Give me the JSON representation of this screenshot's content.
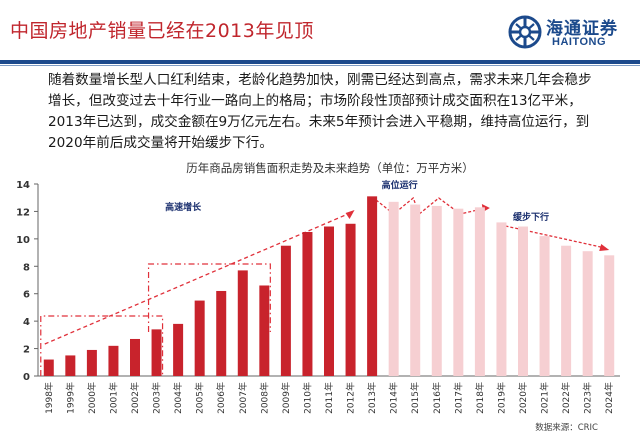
{
  "header": {
    "title": "中国房地产销量已经在2013年见顶",
    "logo_cn": "海通证券",
    "logo_en": "HAITONG",
    "logo_color": "#1c4a8c",
    "logo_icon": "haitong-logo-icon"
  },
  "description": "随着数量增长型人口红利结束，老龄化趋势加快，刚需已经达到高点，需求未来几年会稳步增长，但改变过去十年行业一路向上的格局；市场阶段性顶部预计成交面积在13亿平米，2013年已达到，成交金额在9万亿元左右。未来5年预计会进入平稳期，维持高位运行，到2020年前后成交量将开始缓步下行。",
  "chart_data": {
    "type": "bar",
    "title": "历年商品房销售面积走势及未来趋势（单位：万平方米）",
    "categories": [
      "1998年",
      "1999年",
      "2000年",
      "2001年",
      "2002年",
      "2003年",
      "2004年",
      "2005年",
      "2006年",
      "2007年",
      "2008年",
      "2009年",
      "2010年",
      "2011年",
      "2012年",
      "2013年",
      "2014年",
      "2015年",
      "2016年",
      "2017年",
      "2018年",
      "2019年",
      "2020年",
      "2021年",
      "2022年",
      "2023年",
      "2024年"
    ],
    "values": [
      1.2,
      1.5,
      1.9,
      2.2,
      2.7,
      3.4,
      3.8,
      5.5,
      6.2,
      7.7,
      6.6,
      9.5,
      10.5,
      10.9,
      11.1,
      13.1,
      12.7,
      12.5,
      12.4,
      12.2,
      12.3,
      11.2,
      10.9,
      10.2,
      9.5,
      9.1,
      8.8
    ],
    "actual_count": 16,
    "ylim": [
      0,
      14
    ],
    "yticks": [
      0,
      2,
      4,
      6,
      8,
      10,
      12,
      14
    ],
    "colors": {
      "actual": "#c8232c",
      "forecast": "#f6cfd2",
      "annotation": "#e0303a"
    },
    "annotations": [
      {
        "label": "高速增长"
      },
      {
        "label": "高位运行"
      },
      {
        "label": "缓步下行"
      }
    ],
    "source": "数据来源：CRIC"
  }
}
